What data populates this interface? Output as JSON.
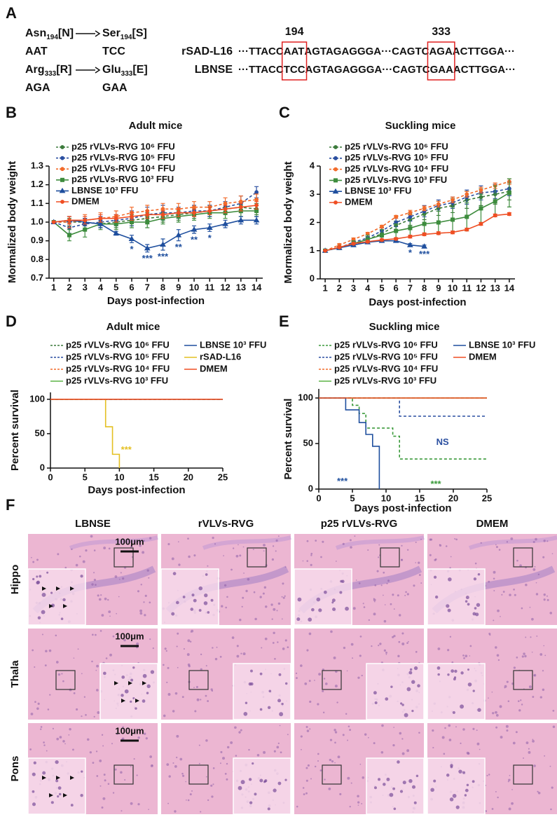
{
  "panel_labels": [
    "A",
    "B",
    "C",
    "D",
    "E",
    "F"
  ],
  "panel_a": {
    "substitutions": [
      {
        "from": {
          "residue": "Asn",
          "position": "194",
          "code": "[N]",
          "codon": "AAT"
        },
        "to": {
          "residue": "Ser",
          "position": "194",
          "code": "[S]",
          "codon": "TCC"
        }
      },
      {
        "from": {
          "residue": "Arg",
          "position": "333",
          "code": "[R]",
          "codon": "AGA"
        },
        "to": {
          "residue": "Glu",
          "position": "333",
          "code": "[E]",
          "codon": "GAA"
        }
      }
    ],
    "site_labels": [
      "194",
      "333"
    ],
    "sequences": [
      {
        "name": "rSAD-L16",
        "segments": [
          "···TTACC",
          "AAT",
          "AGTAGAGGGA···CAGTC",
          "AGA",
          "ACTTGGA···"
        ]
      },
      {
        "name": "LBNSE",
        "segments": [
          "···TTACC",
          "TCC",
          "AGTAGAGGGA···CAGTC",
          "GAA",
          "ACTTGGA···"
        ]
      }
    ]
  },
  "chart_data": [
    {
      "type": "line",
      "title": "Adult mice",
      "x_label": "Days post-infection",
      "y_label": "Mormalized body weight",
      "x": [
        1,
        2,
        3,
        4,
        5,
        6,
        7,
        8,
        9,
        10,
        11,
        12,
        13,
        14
      ],
      "xlim": [
        0.7,
        14.4
      ],
      "xticks": [
        1,
        2,
        3,
        4,
        5,
        6,
        7,
        8,
        9,
        10,
        11,
        12,
        13,
        14
      ],
      "ylim": [
        0.7,
        1.3
      ],
      "yticks": [
        0.7,
        0.8,
        0.9,
        {
          "value": 1,
          "label": "1.0"
        },
        1.1,
        1.2,
        1.3
      ],
      "series": [
        {
          "name": "p25 rVLVs-RVG 10⁶ FFU",
          "color": "#3b7a3b",
          "dashed": true,
          "marker": "circle",
          "values": [
            1,
            1,
            1,
            0.99,
            1,
            1.01,
            1.02,
            1.03,
            1.04,
            1.05,
            1.06,
            1.07,
            1.08,
            1.07
          ],
          "errors": [
            0,
            0.02,
            0.02,
            0.02,
            0.03,
            0.03,
            0.03,
            0.03,
            0.03,
            0.03,
            0.03,
            0.03,
            0.03,
            0.03
          ]
        },
        {
          "name": "p25 rVLVs-RVG 10⁵ FFU",
          "color": "#2a4fa0",
          "dashed": true,
          "marker": "circle",
          "values": [
            1,
            0.97,
            0.99,
            1,
            1.01,
            1.02,
            1.04,
            1.05,
            1.05,
            1.06,
            1.06,
            1.08,
            1.1,
            1.16
          ],
          "errors": [
            0,
            0.03,
            0.03,
            0.03,
            0.03,
            0.04,
            0.04,
            0.04,
            0.03,
            0.03,
            0.03,
            0.03,
            0.04,
            0.03
          ]
        },
        {
          "name": "p25 rVLVs-RVG 10⁴ FFU",
          "color": "#f26b2b",
          "dashed": true,
          "marker": "circle",
          "values": [
            1,
            1,
            1.01,
            1.02,
            1.03,
            1.05,
            1.06,
            1.07,
            1.07,
            1.08,
            1.08,
            1.1,
            1.11,
            1.12
          ],
          "errors": [
            0,
            0.03,
            0.03,
            0.03,
            0.03,
            0.03,
            0.03,
            0.03,
            0.03,
            0.03,
            0.03,
            0.03,
            0.03,
            0.03
          ]
        },
        {
          "name": "p25 rVLVs-RVG 10³ FFU",
          "color": "#3d8c3d",
          "dashed": false,
          "marker": "square",
          "values": [
            1,
            0.93,
            0.96,
            0.99,
            0.99,
            1,
            1,
            1.02,
            1.03,
            1.04,
            1.05,
            1.05,
            1.06,
            1.06
          ],
          "errors": [
            0,
            0.03,
            0.04,
            0.03,
            0.03,
            0.03,
            0.03,
            0.03,
            0.03,
            0.03,
            0.03,
            0.03,
            0.03,
            0.03
          ]
        },
        {
          "name": "LBNSE 10³ FFU",
          "color": "#1f4f9e",
          "dashed": false,
          "marker": "triangle",
          "values": [
            1,
            1.01,
            1,
            0.99,
            0.94,
            0.91,
            0.86,
            0.88,
            0.93,
            0.96,
            0.97,
            0.99,
            1.01,
            1.01
          ],
          "errors": [
            0,
            0.02,
            0.02,
            0.02,
            0.01,
            0.02,
            0.02,
            0.03,
            0.03,
            0.02,
            0.02,
            0.02,
            0.02,
            0.02
          ]
        },
        {
          "name": "DMEM",
          "color": "#ef4e23",
          "dashed": false,
          "marker": "circle",
          "values": [
            1,
            1.01,
            1.01,
            1.02,
            1.02,
            1.03,
            1.04,
            1.04,
            1.05,
            1.05,
            1.06,
            1.07,
            1.08,
            1.09
          ],
          "errors": [
            0,
            0.02,
            0.02,
            0.02,
            0.02,
            0.02,
            0.02,
            0.02,
            0.02,
            0.02,
            0.02,
            0.02,
            0.02,
            0.02
          ]
        }
      ],
      "annotations": [
        {
          "x": 6,
          "text": "*",
          "color": "#1f4f9e"
        },
        {
          "x": 7,
          "text": "***",
          "color": "#1f4f9e"
        },
        {
          "x": 8,
          "text": "***",
          "color": "#1f4f9e"
        },
        {
          "x": 9,
          "text": "**",
          "color": "#1f4f9e"
        },
        {
          "x": 10,
          "text": "**",
          "color": "#1f4f9e"
        },
        {
          "x": 11,
          "text": "*",
          "color": "#1f4f9e"
        }
      ]
    },
    {
      "type": "line",
      "title": "Suckling mice",
      "x_label": "Days post-infection",
      "y_label": "Mormalized body weight",
      "x": [
        1,
        2,
        3,
        4,
        5,
        6,
        7,
        8,
        9,
        10,
        11,
        12,
        13,
        14
      ],
      "xlim": [
        0.65,
        14.4
      ],
      "xticks": [
        1,
        2,
        3,
        4,
        5,
        6,
        7,
        8,
        9,
        10,
        11,
        12,
        13,
        14
      ],
      "ylim": [
        0,
        4
      ],
      "yticks": [
        0,
        1,
        2,
        3,
        4
      ],
      "series": [
        {
          "name": "p25 rVLVs-RVG 10⁶ FFU",
          "color": "#3b7a3b",
          "dashed": true,
          "marker": "circle",
          "values": [
            1,
            1.1,
            1.25,
            1.4,
            1.6,
            1.9,
            2.1,
            2.3,
            2.5,
            2.6,
            2.8,
            2.9,
            3,
            3.1
          ],
          "errors": [
            0,
            0.05,
            0.08,
            0.1,
            0.12,
            0.15,
            0.2,
            0.2,
            0.25,
            0.25,
            0.3,
            0.3,
            0.35,
            0.3
          ]
        },
        {
          "name": "p25 rVLVs-RVG 10⁵ FFU",
          "color": "#2a4fa0",
          "dashed": true,
          "marker": "circle",
          "values": [
            1,
            1.1,
            1.3,
            1.45,
            1.7,
            2,
            2.2,
            2.4,
            2.6,
            2.7,
            2.9,
            3.05,
            3.1,
            3.2
          ],
          "errors": [
            0,
            0.05,
            0.08,
            0.1,
            0.12,
            0.15,
            0.15,
            0.2,
            0.2,
            0.2,
            0.25,
            0.25,
            0.25,
            0.25
          ]
        },
        {
          "name": "p25 rVLVs-RVG 10⁴ FFU",
          "color": "#f26b2b",
          "dashed": true,
          "marker": "circle",
          "values": [
            1,
            1.2,
            1.4,
            1.6,
            1.85,
            2.2,
            2.35,
            2.5,
            2.65,
            2.8,
            3,
            3.15,
            3.3,
            3.45
          ],
          "errors": [
            0,
            0.05,
            0.05,
            0.05,
            0.05,
            0.05,
            0.08,
            0.08,
            0.1,
            0.1,
            0.1,
            0.1,
            0.1,
            0.1
          ]
        },
        {
          "name": "p25 rVLVs-RVG 10³ FFU",
          "color": "#3d8c3d",
          "dashed": false,
          "marker": "square",
          "values": [
            1,
            1.1,
            1.25,
            1.4,
            1.55,
            1.7,
            1.8,
            1.95,
            2,
            2.1,
            2.2,
            2.5,
            2.75,
            3.05
          ],
          "errors": [
            0,
            0.05,
            0.1,
            0.15,
            0.2,
            0.25,
            0.3,
            0.35,
            0.4,
            0.45,
            0.5,
            0.5,
            0.55,
            0.5
          ]
        },
        {
          "name": "LBNSE 10³ FFU",
          "color": "#1f4f9e",
          "dashed": false,
          "marker": "triangle",
          "values": [
            1,
            1.1,
            1.2,
            1.3,
            1.35,
            1.35,
            1.2,
            1.15,
            null,
            null,
            null,
            null,
            null,
            null
          ],
          "errors": [
            0,
            0.03,
            0.03,
            0.04,
            0.05,
            0.05,
            0.05,
            0.05,
            null,
            null,
            null,
            null,
            null,
            null
          ]
        },
        {
          "name": "DMEM",
          "color": "#ef4e23",
          "dashed": false,
          "marker": "circle",
          "values": [
            1,
            1.12,
            1.25,
            1.32,
            1.38,
            1.42,
            1.5,
            1.58,
            1.62,
            1.65,
            1.75,
            1.95,
            2.25,
            2.3
          ],
          "errors": [
            0,
            0.03,
            0.03,
            0.04,
            0.04,
            0.04,
            0.05,
            0.05,
            0.05,
            0.05,
            0.05,
            0.05,
            0.05,
            0.05
          ]
        }
      ],
      "annotations": [
        {
          "x": 7,
          "text": "*",
          "color": "#1f4f9e"
        },
        {
          "x": 8,
          "text": "***",
          "color": "#1f4f9e"
        }
      ]
    },
    {
      "type": "step",
      "title": "Adult mice",
      "x_label": "Days post-infection",
      "y_label": "Percent survival",
      "xlim": [
        0,
        25
      ],
      "xticks": [
        0,
        5,
        10,
        15,
        20,
        25
      ],
      "ylim": [
        0,
        110
      ],
      "yticks": [
        0,
        50,
        100
      ],
      "series": [
        {
          "name": "p25 rVLVs-RVG 10⁶ FFU",
          "color": "#3b7a3b",
          "dashed": true,
          "x": [
            0,
            25
          ],
          "y": [
            100,
            100
          ]
        },
        {
          "name": "p25 rVLVs-RVG 10⁵ FFU",
          "color": "#2a4fa0",
          "dashed": true,
          "x": [
            0,
            25
          ],
          "y": [
            100,
            100
          ]
        },
        {
          "name": "p25 rVLVs-RVG 10⁴ FFU",
          "color": "#f26b2b",
          "dashed": true,
          "x": [
            0,
            25
          ],
          "y": [
            100,
            100
          ]
        },
        {
          "name": "p25 rVLVs-RVG 10³ FFU",
          "color": "#5cb346",
          "dashed": false,
          "x": [
            0,
            25
          ],
          "y": [
            100,
            100
          ]
        },
        {
          "name": "LBNSE 10³ FFU",
          "color": "#1f4f9e",
          "dashed": false,
          "x": [
            0,
            25
          ],
          "y": [
            100,
            100
          ]
        },
        {
          "name": "rSAD-L16",
          "color": "#e4c023",
          "dashed": false,
          "x": [
            0,
            8,
            9,
            10
          ],
          "y": [
            100,
            60,
            20,
            0
          ]
        },
        {
          "name": "DMEM",
          "color": "#ef4e23",
          "dashed": false,
          "x": [
            0,
            25
          ],
          "y": [
            100,
            100
          ]
        }
      ],
      "annotations": [
        {
          "x": 11,
          "y": 26,
          "text": "***",
          "color": "#e4c023"
        }
      ]
    },
    {
      "type": "step",
      "title": "Suckling mice",
      "x_label": "Days post-infection",
      "y_label": "Percent survival",
      "xlim": [
        0,
        25
      ],
      "xticks": [
        0,
        5,
        10,
        15,
        20,
        25
      ],
      "ylim": [
        0,
        110
      ],
      "yticks": [
        0,
        50,
        100
      ],
      "series": [
        {
          "name": "p25 rVLVs-RVG 10⁶ FFU",
          "color": "#3b9a3b",
          "dashed": true,
          "x": [
            0,
            5,
            6,
            7,
            11,
            12,
            25
          ],
          "y": [
            100,
            92,
            83,
            67,
            58,
            33,
            33
          ]
        },
        {
          "name": "p25 rVLVs-RVG 10⁵ FFU",
          "color": "#2a4fa0",
          "dashed": true,
          "x": [
            0,
            12,
            25
          ],
          "y": [
            100,
            80,
            80
          ]
        },
        {
          "name": "p25 rVLVs-RVG 10⁴ FFU",
          "color": "#f26b2b",
          "dashed": true,
          "x": [
            0,
            25
          ],
          "y": [
            100,
            100
          ]
        },
        {
          "name": "p25 rVLVs-RVG 10³ FFU",
          "color": "#5cb346",
          "dashed": false,
          "x": [
            0,
            25
          ],
          "y": [
            100,
            100
          ]
        },
        {
          "name": "LBNSE 10³ FFU",
          "color": "#1f4f9e",
          "dashed": false,
          "x": [
            0,
            4,
            6,
            7,
            8,
            9
          ],
          "y": [
            100,
            87,
            73,
            60,
            47,
            0
          ]
        },
        {
          "name": "DMEM",
          "color": "#ef4e23",
          "dashed": false,
          "x": [
            0,
            25
          ],
          "y": [
            100,
            100
          ]
        }
      ],
      "annotations": [
        {
          "x": 18.4,
          "y": 51,
          "text": "NS",
          "color": "#2a4fa0"
        },
        {
          "x": 3.5,
          "y": 8,
          "text": "***",
          "color": "#1f4f9e"
        },
        {
          "x": 17.4,
          "y": 5,
          "text": "***",
          "color": "#3b9a3b"
        }
      ]
    }
  ],
  "panel_f": {
    "columns": [
      "LBNSE",
      "rVLVs-RVG",
      "p25 rVLVs-RVG",
      "DMEM"
    ],
    "rows": [
      "Hippo",
      "Thala",
      "Pons"
    ],
    "scale_bar": "100μm"
  }
}
